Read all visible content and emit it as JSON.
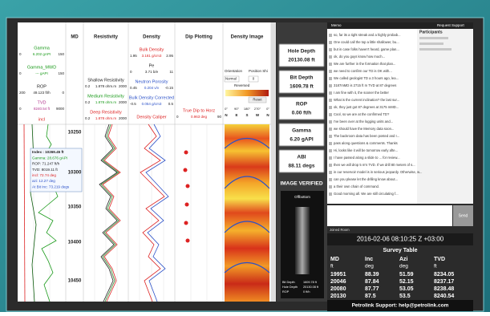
{
  "tracks": {
    "headers": [
      "MD",
      "Resistivity",
      "Density",
      "Dip Plotting",
      "Density Image"
    ],
    "gamma": {
      "name": "Gamma",
      "min": "0",
      "value": "6.202 gAPI",
      "max": "150"
    },
    "gamma_mwd": {
      "name": "Gamma_MWD",
      "min": "0",
      "value": "--- gAPI",
      "max": "150"
    },
    "rop": {
      "name": "ROP",
      "min": "200",
      "value": "49.123 ft/h",
      "max": "0"
    },
    "tvd": {
      "name": "TVD",
      "min": "0",
      "value": "8240.54 ft",
      "max": "9000"
    },
    "incl": "incl",
    "shallow_res": {
      "name": "Shallow Resistivity",
      "min": "0.2",
      "value": "1.878 ohm.m",
      "max": "2000"
    },
    "medium_res": {
      "name": "Medium Resistivity",
      "min": "0.2",
      "value": "1.878 ohm.m",
      "max": "2000"
    },
    "deep_res": {
      "name": "Deep Resistivity",
      "min": "0.2",
      "value": "1.878 ohm.m",
      "max": "2000"
    },
    "bulk_density": {
      "name": "Bulk Density",
      "min": "1.95",
      "value": "3.181 g/cm3",
      "max": "2.95"
    },
    "pe": {
      "name": "Pe",
      "min": "0",
      "value": "3.71 b/e",
      "max": "11"
    },
    "neutron": {
      "name": "Neutron Porosity",
      "min": "0.45",
      "value": "0.204 v/v",
      "max": "-0.15"
    },
    "bdc": {
      "name": "Bulk Density Corrected",
      "min": "-0.5",
      "value": "0.054 g/cm3",
      "max": "0.5"
    },
    "caliper": "Density Caliper",
    "dip": {
      "name": "True Dip to Horz",
      "min": "0",
      "value": "0.963 deg",
      "max": "90"
    },
    "image_controls": {
      "orientation": "Orientation",
      "position": "Position Shi",
      "mode": "Normal",
      "shift": "0",
      "reversed": "Reversed",
      "reset": "Reset",
      "degrees": [
        "0°",
        "90°",
        "180°",
        "270°",
        "0°"
      ],
      "compass": [
        "N",
        "E",
        "S",
        "W",
        "N"
      ]
    },
    "depths": [
      10250,
      10300,
      10350,
      10400,
      10450
    ],
    "tooltip": [
      "Index : 10269.45 ft",
      "Gamma: 28.676 gAPI",
      "ROP: 71.247 ft/h",
      "TVD: 8019.11 ft",
      "incl: 72.74 deg",
      "azi: 12.27 deg",
      "At Bit Inc: 73.219 degs"
    ]
  },
  "status": {
    "items": [
      {
        "label": "Hole Depth",
        "value": "20130.08 ft"
      },
      {
        "label": "Bit Depth",
        "value": "1609.78 ft"
      },
      {
        "label": "ROP",
        "value": "0.00 ft/h"
      },
      {
        "label": "Gamma",
        "value": "6.20 gAPI"
      },
      {
        "label": "ABI",
        "value": "88.11 degs"
      }
    ],
    "verified": "IMAGE VERIFIED",
    "tool": "Offbottom",
    "tool_readout": [
      [
        "Bit Depth",
        "1609.78 ft"
      ],
      [
        "Hole Depth",
        "20130.08 ft"
      ],
      [
        "ROP",
        "0 ft/h"
      ]
    ]
  },
  "chat": {
    "tab": "Memo",
    "support": "Request Support",
    "participants": "Participants",
    "messages": [
      "so, far its a tight streak and a highly probab...",
      "One could call the top a little shallower, bu...",
      "but in case folks haven't heard, game plan...",
      "ok, do you guys know how much...",
      "We are further in the formation that plan...",
      "we need to confirm our TD is OK with...",
      "We called geologist TD a 3 hours ago, lea...",
      "3187mMD is 2715 ft m TVD at 87 degrees",
      "I am fine with it, the sooner the better",
      "What is the current inclination? the last sur...",
      "ok, they just got 87 degrees at 3175 mMD...",
      "Cool, so we are at the confirmed TD?",
      "I've been over at the logging units and...",
      "we should have the Memory data soon...",
      "The backroom data has been posted and I...",
      "pass along questions & comments. Thanks",
      "Hi, looks like it will be tomorrow early afte...",
      "I have passed along a slide to ... for review...",
      "then we will drop 5 m's TVD. If we drill 80 meters of s...",
      "in our reservoir model is in serious jeopardy. Otherwise, w...",
      "can you please let the drilling know about...",
      "a their own chain of command.",
      "Good morning all. We are still circulating f..."
    ],
    "send": "Send",
    "joined": "Joined Room"
  },
  "survey": {
    "timestamp": "2016-02-06 08:10:25 Z +03:00",
    "title": "Survey Table",
    "columns": [
      [
        "MD",
        "ft"
      ],
      [
        "Inc",
        "deg"
      ],
      [
        "Azi",
        "deg"
      ],
      [
        "TVD",
        "ft"
      ]
    ],
    "rows": [
      [
        19951,
        88.39,
        51.59,
        8234.05
      ],
      [
        20046,
        87.84,
        52.15,
        8237.17
      ],
      [
        20080,
        87.77,
        53.05,
        8238.48
      ],
      [
        20130,
        87.5,
        53.5,
        8240.54
      ]
    ],
    "footer": "Petrolink Support: help@petrolink.com"
  }
}
